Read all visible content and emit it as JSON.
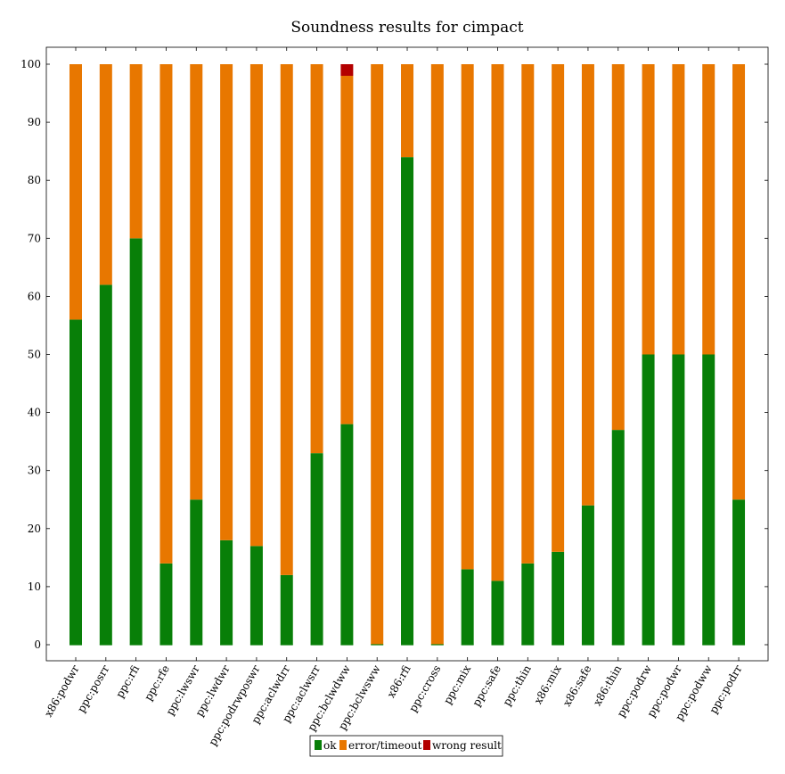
{
  "chart_data": {
    "type": "bar",
    "stacked": true,
    "title": "Soundness results for cimpact",
    "xlabel": "",
    "ylabel": "",
    "ylim": [
      0,
      100
    ],
    "yticks": [
      0,
      10,
      20,
      30,
      40,
      50,
      60,
      70,
      80,
      90,
      100
    ],
    "grid": false,
    "legend_position": "bottom-center",
    "categories": [
      "x86:podwr",
      "ppc:posrr",
      "ppc:rfi",
      "ppc:rfe",
      "ppc:lwswr",
      "ppc:lwdwr",
      "ppc:podrwposwr",
      "ppc:aclwdrr",
      "ppc:aclwsrr",
      "ppc:bclwdww",
      "ppc:bclwsww",
      "x86:rfi",
      "ppc:cross",
      "ppc:mix",
      "ppc:safe",
      "ppc:thin",
      "x86:mix",
      "x86:safe",
      "x86:thin",
      "ppc:podrw",
      "ppc:podwr",
      "ppc:podww",
      "ppc:podrr"
    ],
    "series": [
      {
        "name": "ok",
        "color": "#087f08",
        "values": [
          56,
          62,
          70,
          14,
          25,
          18,
          17,
          12,
          33,
          38,
          0,
          84,
          0,
          13,
          11,
          14,
          16,
          24,
          37,
          50,
          50,
          50,
          25
        ]
      },
      {
        "name": "error/timeout",
        "color": "#e87700",
        "values": [
          44,
          38,
          30,
          86,
          75,
          82,
          83,
          88,
          67,
          60,
          100,
          16,
          100,
          87,
          89,
          86,
          84,
          76,
          63,
          50,
          50,
          50,
          75
        ]
      },
      {
        "name": "wrong result",
        "color": "#b30000",
        "values": [
          0,
          0,
          0,
          0,
          0,
          0,
          0,
          0,
          0,
          2,
          0,
          0,
          0,
          0,
          0,
          0,
          0,
          0,
          0,
          0,
          0,
          0,
          0
        ]
      }
    ]
  }
}
